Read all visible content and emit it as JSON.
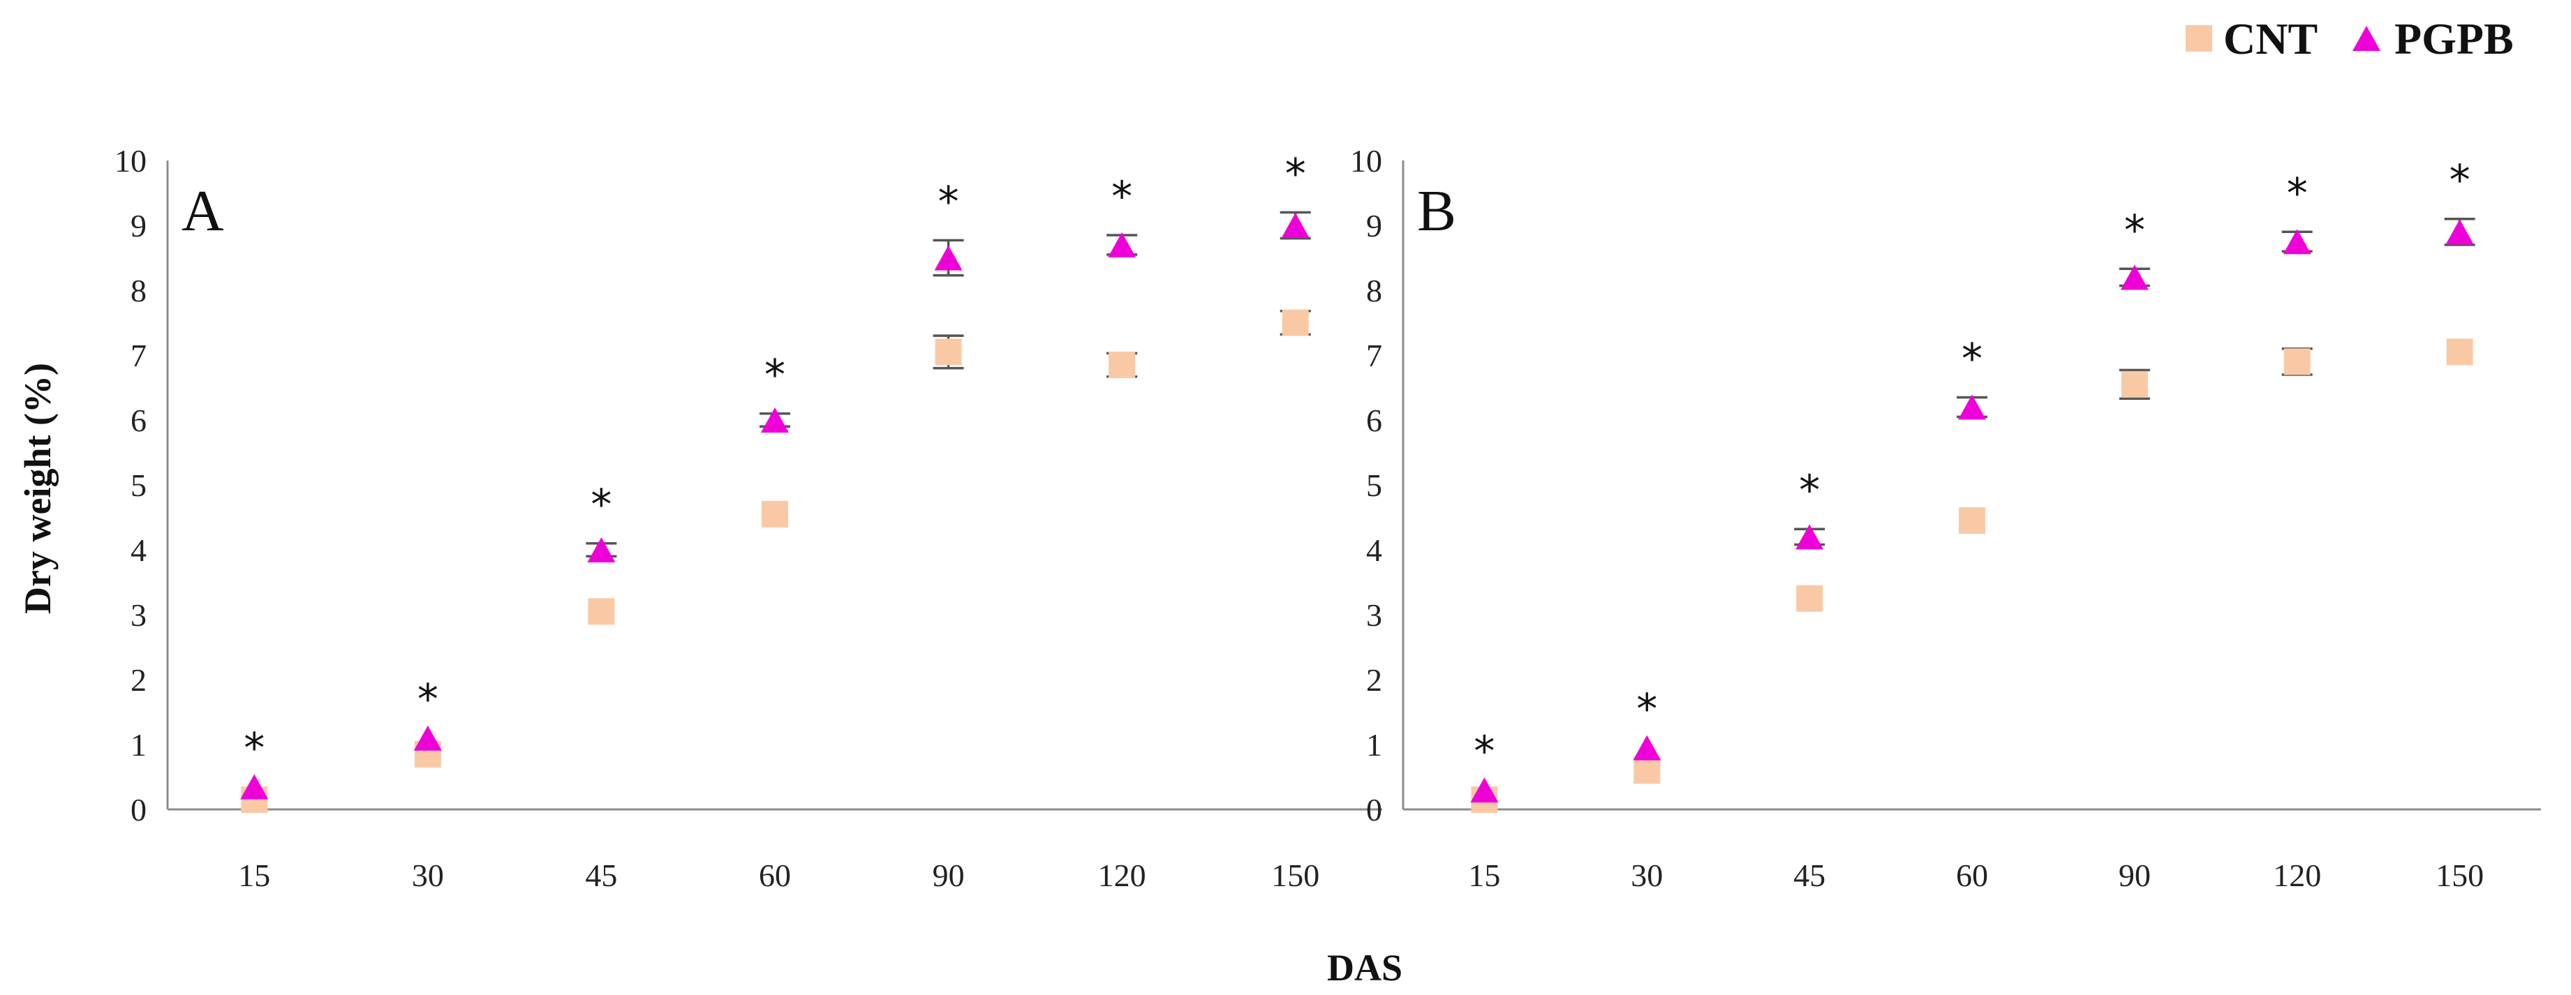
{
  "chart_data": {
    "type": "scatter",
    "xlabel": "DAS",
    "ylabel": "Dry weight (%)",
    "categories": [
      "15",
      "30",
      "45",
      "60",
      "90",
      "120",
      "150"
    ],
    "ylim": [
      0,
      10
    ],
    "yticks": [
      "0",
      "1",
      "2",
      "3",
      "4",
      "5",
      "6",
      "7",
      "8",
      "9",
      "10"
    ],
    "grid": false,
    "legend_position": "top-right",
    "legend": [
      {
        "name": "CNT",
        "color": "#f9c9a6",
        "marker": "square"
      },
      {
        "name": "PGPB",
        "color": "#ee00d8",
        "marker": "triangle"
      }
    ],
    "significance_marker": "*",
    "panels": [
      {
        "label": "A",
        "series": [
          {
            "name": "CNT",
            "values": [
              0.15,
              0.85,
              3.05,
              4.55,
              7.05,
              6.85,
              7.5
            ],
            "errors": [
              0.0,
              0.0,
              0.0,
              0.0,
              0.25,
              0.18,
              0.18
            ]
          },
          {
            "name": "PGPB",
            "values": [
              0.35,
              1.1,
              4.0,
              6.0,
              8.5,
              8.7,
              9.0
            ],
            "errors": [
              0.0,
              0.0,
              0.1,
              0.1,
              0.27,
              0.15,
              0.2
            ]
          }
        ],
        "significant": [
          true,
          true,
          true,
          true,
          true,
          true,
          true
        ]
      },
      {
        "label": "B",
        "series": [
          {
            "name": "CNT",
            "values": [
              0.15,
              0.6,
              3.25,
              4.45,
              6.55,
              6.9,
              7.05
            ],
            "errors": [
              0.0,
              0.0,
              0.0,
              0.0,
              0.22,
              0.2,
              0.0
            ]
          },
          {
            "name": "PGPB",
            "values": [
              0.3,
              0.95,
              4.2,
              6.2,
              8.2,
              8.75,
              8.9
            ],
            "errors": [
              0.0,
              0.0,
              0.12,
              0.15,
              0.13,
              0.15,
              0.2
            ]
          }
        ],
        "significant": [
          true,
          true,
          true,
          true,
          true,
          true,
          true
        ]
      }
    ]
  }
}
